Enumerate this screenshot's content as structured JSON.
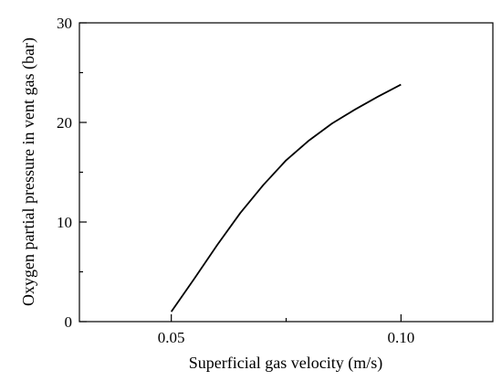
{
  "chart_data": {
    "type": "line",
    "xlabel": "Superficial gas velocity (m/s)",
    "ylabel": "Oxygen partial pressure in vent gas (bar)",
    "xlim": [
      0.03,
      0.12
    ],
    "ylim": [
      0,
      30
    ],
    "x_ticks": [
      0.05,
      0.1
    ],
    "x_tick_labels": [
      "0.05",
      "0.10"
    ],
    "x_minor_ticks": [
      0.075
    ],
    "y_ticks": [
      0,
      10,
      20,
      30
    ],
    "y_tick_labels": [
      "0",
      "10",
      "20",
      "30"
    ],
    "y_minor_ticks": [
      5,
      15,
      25
    ],
    "grid": false,
    "legend": "none",
    "series": [
      {
        "color": "#000000",
        "x": [
          0.05,
          0.055,
          0.06,
          0.065,
          0.07,
          0.075,
          0.08,
          0.085,
          0.09,
          0.095,
          0.1
        ],
        "y": [
          1.0,
          4.3,
          7.7,
          10.9,
          13.7,
          16.2,
          18.2,
          19.9,
          21.3,
          22.6,
          23.8
        ]
      }
    ]
  }
}
